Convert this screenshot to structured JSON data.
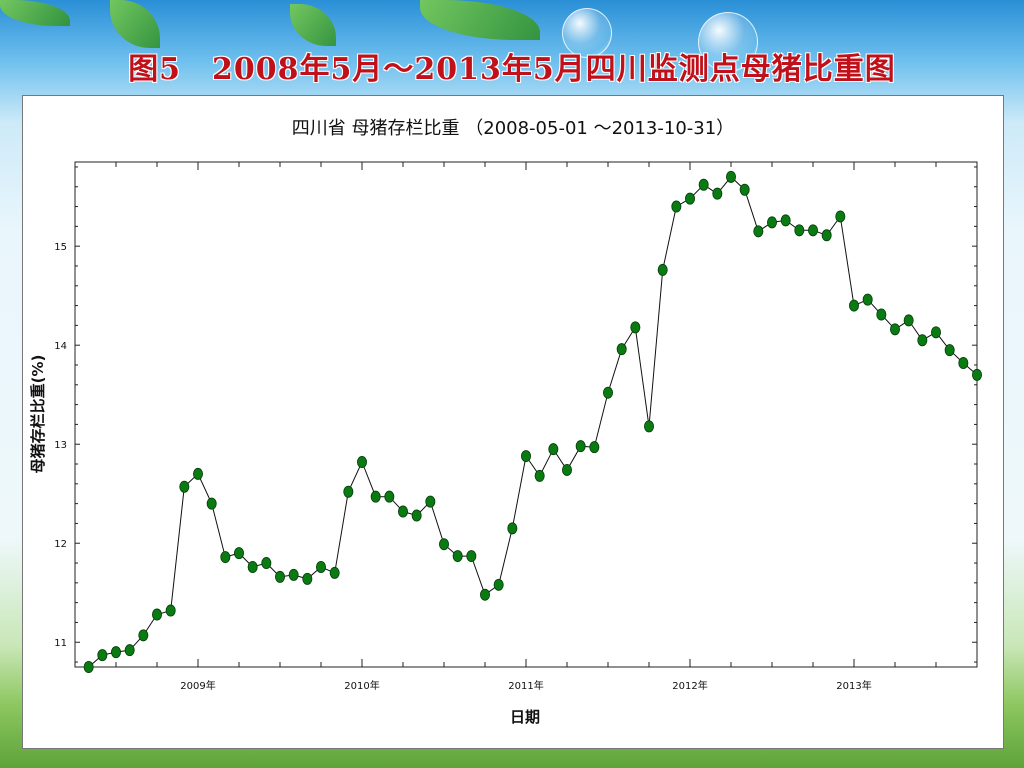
{
  "slide": {
    "title": "图5　2008年5月～2013年5月四川监测点母猪比重图"
  },
  "chart_data": {
    "type": "line",
    "title": "四川省 母猪存栏比重 （2008-05-01 ～2013-10-31）",
    "xlabel": "日期",
    "ylabel": "母猪存栏比重(%)",
    "x_tick_labels": [
      "2009年",
      "2010年",
      "2011年",
      "2012年",
      "2013年"
    ],
    "y_ticks": [
      11,
      12,
      13,
      14,
      15
    ],
    "ylim": [
      10.75,
      15.85
    ],
    "xlim": [
      "2008-04",
      "2013-10"
    ],
    "grid": false,
    "marker_color": "#0a7a12",
    "series": [
      {
        "x": [
          "2008-05",
          "2008-06",
          "2008-07",
          "2008-08",
          "2008-09",
          "2008-10",
          "2008-11",
          "2008-12",
          "2009-01",
          "2009-02",
          "2009-03",
          "2009-04",
          "2009-05",
          "2009-06",
          "2009-07",
          "2009-08",
          "2009-09",
          "2009-10",
          "2009-11",
          "2009-12",
          "2010-01",
          "2010-02",
          "2010-03",
          "2010-04",
          "2010-05",
          "2010-06",
          "2010-07",
          "2010-08",
          "2010-09",
          "2010-10",
          "2010-11",
          "2010-12",
          "2011-01",
          "2011-02",
          "2011-03",
          "2011-04",
          "2011-05",
          "2011-06",
          "2011-07",
          "2011-08",
          "2011-09",
          "2011-10",
          "2011-11",
          "2011-12",
          "2012-01",
          "2012-02",
          "2012-03",
          "2012-04",
          "2012-05",
          "2012-06",
          "2012-07",
          "2012-08",
          "2012-09",
          "2012-10",
          "2012-11",
          "2012-12",
          "2013-01",
          "2013-02",
          "2013-03",
          "2013-04",
          "2013-05",
          "2013-06",
          "2013-07",
          "2013-08",
          "2013-09",
          "2013-10"
        ],
        "values": [
          10.75,
          10.87,
          10.9,
          10.92,
          11.07,
          11.28,
          11.32,
          12.57,
          12.7,
          12.4,
          11.86,
          11.9,
          11.76,
          11.8,
          11.66,
          11.68,
          11.64,
          11.76,
          11.7,
          12.52,
          12.82,
          12.47,
          12.47,
          12.32,
          12.28,
          12.42,
          11.99,
          11.87,
          11.87,
          11.48,
          11.58,
          12.15,
          12.88,
          12.68,
          12.95,
          12.74,
          12.98,
          12.97,
          13.52,
          13.96,
          14.18,
          13.18,
          14.76,
          15.4,
          15.48,
          15.62,
          15.53,
          15.7,
          15.57,
          15.15,
          15.24,
          15.26,
          15.16,
          15.16,
          15.11,
          15.3,
          14.4,
          14.46,
          14.31,
          14.16,
          14.25,
          14.05,
          14.13,
          13.95,
          13.82,
          13.7
        ]
      }
    ]
  }
}
